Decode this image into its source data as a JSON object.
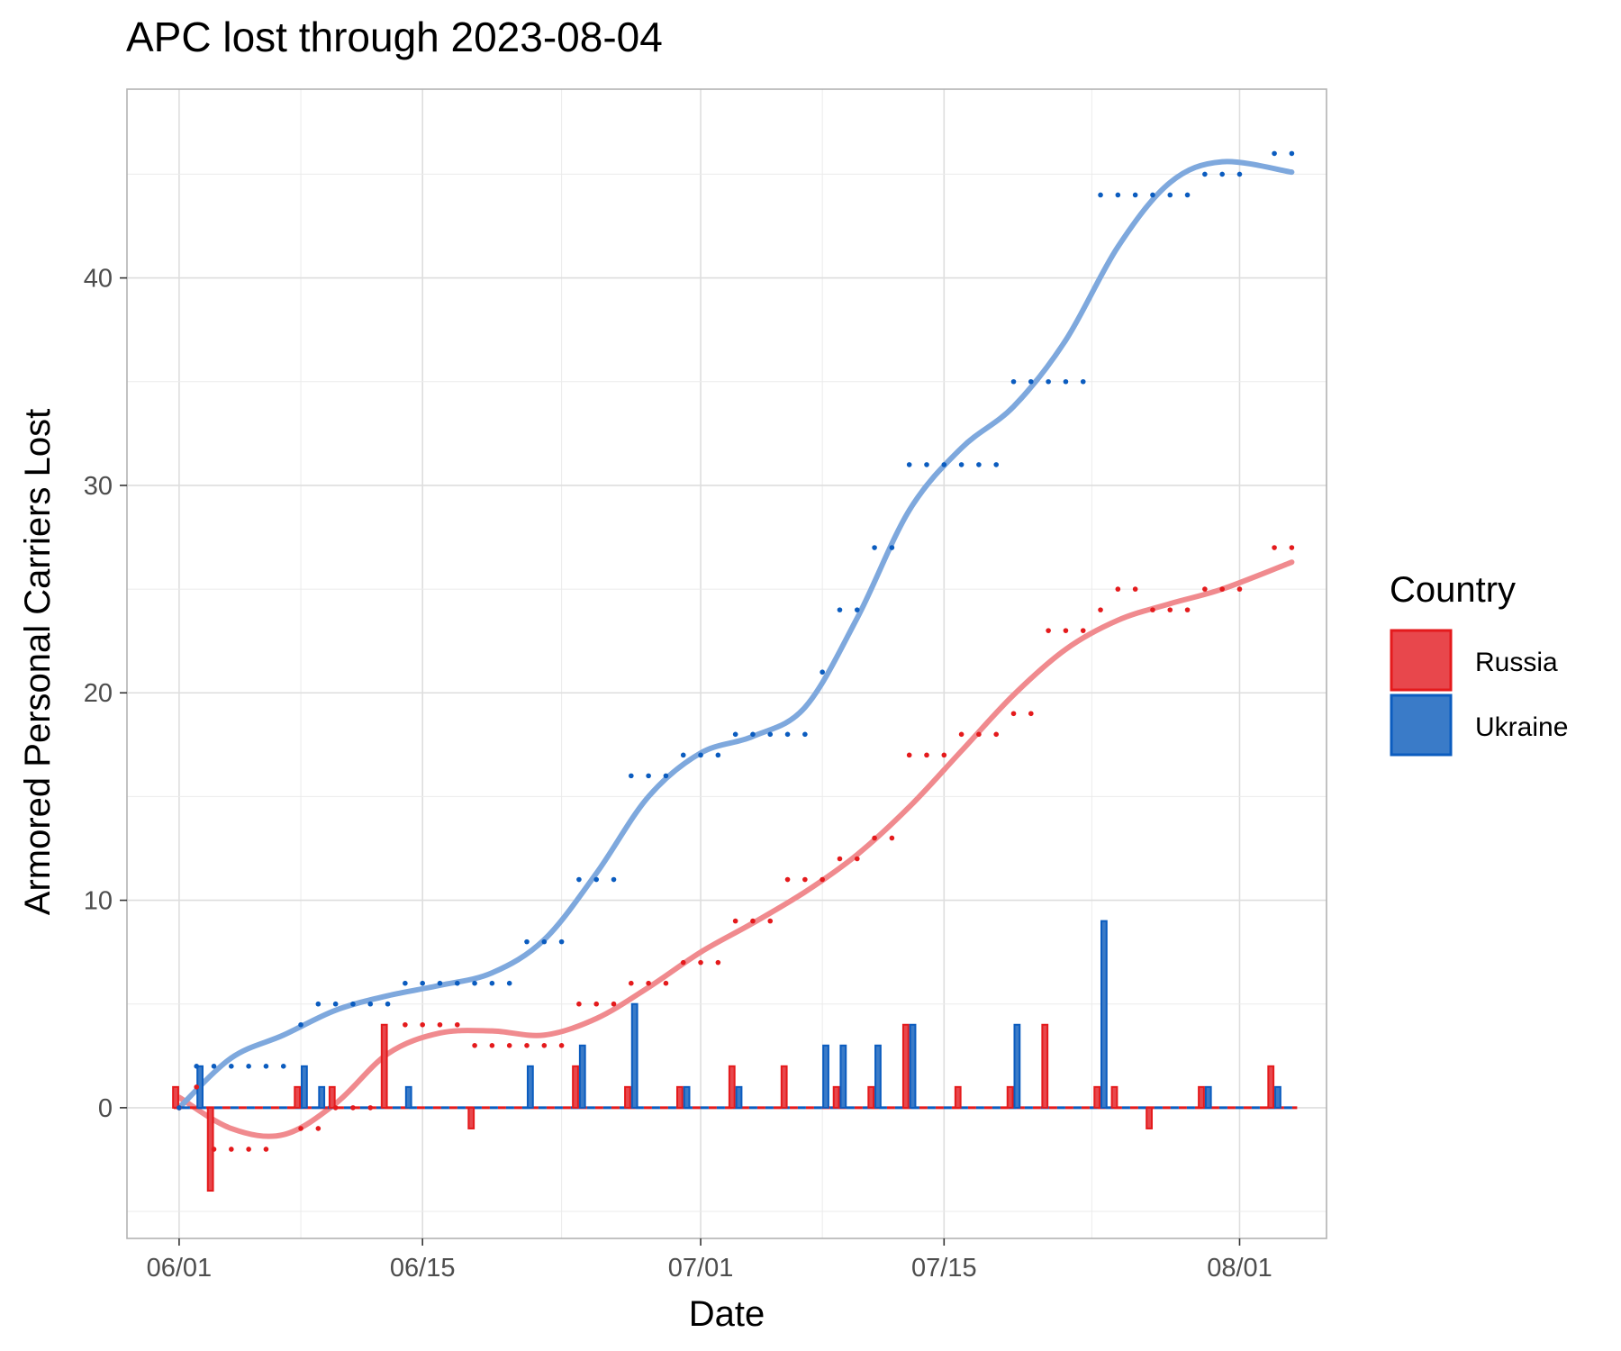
{
  "chart_data": {
    "type": "bar",
    "title": "APC lost through 2023-08-04",
    "xlabel": "Date",
    "ylabel": "Armored Personal Carriers Lost",
    "x_ticks": [
      "06/01",
      "06/15",
      "07/01",
      "07/15",
      "08/01"
    ],
    "y_ticks": [
      "0",
      "10",
      "20",
      "30",
      "40"
    ],
    "ylim": [
      -6.3,
      49.1
    ],
    "xlim": [
      "2023-05-29",
      "2023-08-06"
    ],
    "grid": true,
    "legend": {
      "title": "Country",
      "position": "right"
    },
    "colors": {
      "Russia": "#e8474c",
      "Ukraine": "#3a7bc8",
      "Russia_line": "#f08a8e",
      "Ukraine_line": "#7ea8dd",
      "Russia_dot": "#e41a1c",
      "Ukraine_dot": "#0b5cbf"
    },
    "series": [
      {
        "name": "Russia",
        "daily": [
          {
            "date": "2023-06-01",
            "value": 1
          },
          {
            "date": "2023-06-03",
            "value": -4
          },
          {
            "date": "2023-06-08",
            "value": 1
          },
          {
            "date": "2023-06-10",
            "value": 1
          },
          {
            "date": "2023-06-13",
            "value": 4
          },
          {
            "date": "2023-06-18",
            "value": -1
          },
          {
            "date": "2023-06-24",
            "value": 2
          },
          {
            "date": "2023-06-27",
            "value": 1
          },
          {
            "date": "2023-06-30",
            "value": 1
          },
          {
            "date": "2023-07-03",
            "value": 2
          },
          {
            "date": "2023-07-06",
            "value": 2
          },
          {
            "date": "2023-07-09",
            "value": 1
          },
          {
            "date": "2023-07-11",
            "value": 1
          },
          {
            "date": "2023-07-13",
            "value": 4
          },
          {
            "date": "2023-07-16",
            "value": 1
          },
          {
            "date": "2023-07-19",
            "value": 1
          },
          {
            "date": "2023-07-21",
            "value": 4
          },
          {
            "date": "2023-07-24",
            "value": 1
          },
          {
            "date": "2023-07-25",
            "value": 1
          },
          {
            "date": "2023-07-27",
            "value": -1
          },
          {
            "date": "2023-07-30",
            "value": 1
          },
          {
            "date": "2023-08-03",
            "value": 2
          }
        ],
        "cumulative": [
          {
            "date": "2023-06-01",
            "value": 0
          },
          {
            "date": "2023-06-02",
            "value": 1
          },
          {
            "date": "2023-06-03",
            "value": -2
          },
          {
            "date": "2023-06-04",
            "value": -2
          },
          {
            "date": "2023-06-05",
            "value": -2
          },
          {
            "date": "2023-06-06",
            "value": -2
          },
          {
            "date": "2023-06-08",
            "value": -1
          },
          {
            "date": "2023-06-09",
            "value": -1
          },
          {
            "date": "2023-06-10",
            "value": 0
          },
          {
            "date": "2023-06-11",
            "value": 0
          },
          {
            "date": "2023-06-12",
            "value": 0
          },
          {
            "date": "2023-06-14",
            "value": 4
          },
          {
            "date": "2023-06-15",
            "value": 4
          },
          {
            "date": "2023-06-16",
            "value": 4
          },
          {
            "date": "2023-06-17",
            "value": 4
          },
          {
            "date": "2023-06-18",
            "value": 3
          },
          {
            "date": "2023-06-19",
            "value": 3
          },
          {
            "date": "2023-06-20",
            "value": 3
          },
          {
            "date": "2023-06-21",
            "value": 3
          },
          {
            "date": "2023-06-22",
            "value": 3
          },
          {
            "date": "2023-06-23",
            "value": 3
          },
          {
            "date": "2023-06-24",
            "value": 5
          },
          {
            "date": "2023-06-25",
            "value": 5
          },
          {
            "date": "2023-06-26",
            "value": 5
          },
          {
            "date": "2023-06-27",
            "value": 6
          },
          {
            "date": "2023-06-28",
            "value": 6
          },
          {
            "date": "2023-06-29",
            "value": 6
          },
          {
            "date": "2023-06-30",
            "value": 7
          },
          {
            "date": "2023-07-01",
            "value": 7
          },
          {
            "date": "2023-07-02",
            "value": 7
          },
          {
            "date": "2023-07-03",
            "value": 9
          },
          {
            "date": "2023-07-04",
            "value": 9
          },
          {
            "date": "2023-07-05",
            "value": 9
          },
          {
            "date": "2023-07-06",
            "value": 11
          },
          {
            "date": "2023-07-07",
            "value": 11
          },
          {
            "date": "2023-07-08",
            "value": 11
          },
          {
            "date": "2023-07-09",
            "value": 12
          },
          {
            "date": "2023-07-10",
            "value": 12
          },
          {
            "date": "2023-07-11",
            "value": 13
          },
          {
            "date": "2023-07-12",
            "value": 13
          },
          {
            "date": "2023-07-13",
            "value": 17
          },
          {
            "date": "2023-07-14",
            "value": 17
          },
          {
            "date": "2023-07-15",
            "value": 17
          },
          {
            "date": "2023-07-16",
            "value": 18
          },
          {
            "date": "2023-07-17",
            "value": 18
          },
          {
            "date": "2023-07-18",
            "value": 18
          },
          {
            "date": "2023-07-19",
            "value": 19
          },
          {
            "date": "2023-07-20",
            "value": 19
          },
          {
            "date": "2023-07-21",
            "value": 23
          },
          {
            "date": "2023-07-22",
            "value": 23
          },
          {
            "date": "2023-07-23",
            "value": 23
          },
          {
            "date": "2023-07-24",
            "value": 24
          },
          {
            "date": "2023-07-25",
            "value": 25
          },
          {
            "date": "2023-07-26",
            "value": 25
          },
          {
            "date": "2023-07-27",
            "value": 24
          },
          {
            "date": "2023-07-28",
            "value": 24
          },
          {
            "date": "2023-07-29",
            "value": 24
          },
          {
            "date": "2023-07-30",
            "value": 25
          },
          {
            "date": "2023-07-31",
            "value": 25
          },
          {
            "date": "2023-08-01",
            "value": 25
          },
          {
            "date": "2023-08-03",
            "value": 27
          },
          {
            "date": "2023-08-04",
            "value": 27
          }
        ],
        "trend": [
          {
            "date": "2023-06-01",
            "value": 0.5
          },
          {
            "date": "2023-06-04",
            "value": -1
          },
          {
            "date": "2023-06-07",
            "value": -1.3
          },
          {
            "date": "2023-06-10",
            "value": 0.2
          },
          {
            "date": "2023-06-13",
            "value": 2.6
          },
          {
            "date": "2023-06-16",
            "value": 3.6
          },
          {
            "date": "2023-06-19",
            "value": 3.7
          },
          {
            "date": "2023-06-22",
            "value": 3.5
          },
          {
            "date": "2023-06-25",
            "value": 4.3
          },
          {
            "date": "2023-06-28",
            "value": 5.8
          },
          {
            "date": "2023-07-01",
            "value": 7.5
          },
          {
            "date": "2023-07-04",
            "value": 8.9
          },
          {
            "date": "2023-07-07",
            "value": 10.4
          },
          {
            "date": "2023-07-10",
            "value": 12.2
          },
          {
            "date": "2023-07-13",
            "value": 14.5
          },
          {
            "date": "2023-07-16",
            "value": 17.2
          },
          {
            "date": "2023-07-19",
            "value": 19.9
          },
          {
            "date": "2023-07-22",
            "value": 22.1
          },
          {
            "date": "2023-07-25",
            "value": 23.5
          },
          {
            "date": "2023-07-28",
            "value": 24.3
          },
          {
            "date": "2023-07-31",
            "value": 25.0
          },
          {
            "date": "2023-08-04",
            "value": 26.3
          }
        ]
      },
      {
        "name": "Ukraine",
        "daily": [
          {
            "date": "2023-06-02",
            "value": 2
          },
          {
            "date": "2023-06-08",
            "value": 2
          },
          {
            "date": "2023-06-09",
            "value": 1
          },
          {
            "date": "2023-06-14",
            "value": 1
          },
          {
            "date": "2023-06-21",
            "value": 2
          },
          {
            "date": "2023-06-24",
            "value": 3
          },
          {
            "date": "2023-06-27",
            "value": 5
          },
          {
            "date": "2023-06-30",
            "value": 1
          },
          {
            "date": "2023-07-03",
            "value": 1
          },
          {
            "date": "2023-07-08",
            "value": 3
          },
          {
            "date": "2023-07-09",
            "value": 3
          },
          {
            "date": "2023-07-11",
            "value": 3
          },
          {
            "date": "2023-07-13",
            "value": 4
          },
          {
            "date": "2023-07-19",
            "value": 4
          },
          {
            "date": "2023-07-24",
            "value": 9
          },
          {
            "date": "2023-07-30",
            "value": 1
          },
          {
            "date": "2023-08-03",
            "value": 1
          }
        ],
        "cumulative": [
          {
            "date": "2023-06-01",
            "value": 0
          },
          {
            "date": "2023-06-02",
            "value": 2
          },
          {
            "date": "2023-06-03",
            "value": 2
          },
          {
            "date": "2023-06-04",
            "value": 2
          },
          {
            "date": "2023-06-05",
            "value": 2
          },
          {
            "date": "2023-06-06",
            "value": 2
          },
          {
            "date": "2023-06-07",
            "value": 2
          },
          {
            "date": "2023-06-08",
            "value": 4
          },
          {
            "date": "2023-06-09",
            "value": 5
          },
          {
            "date": "2023-06-10",
            "value": 5
          },
          {
            "date": "2023-06-11",
            "value": 5
          },
          {
            "date": "2023-06-12",
            "value": 5
          },
          {
            "date": "2023-06-13",
            "value": 5
          },
          {
            "date": "2023-06-14",
            "value": 6
          },
          {
            "date": "2023-06-15",
            "value": 6
          },
          {
            "date": "2023-06-16",
            "value": 6
          },
          {
            "date": "2023-06-17",
            "value": 6
          },
          {
            "date": "2023-06-18",
            "value": 6
          },
          {
            "date": "2023-06-19",
            "value": 6
          },
          {
            "date": "2023-06-20",
            "value": 6
          },
          {
            "date": "2023-06-21",
            "value": 8
          },
          {
            "date": "2023-06-22",
            "value": 8
          },
          {
            "date": "2023-06-23",
            "value": 8
          },
          {
            "date": "2023-06-24",
            "value": 11
          },
          {
            "date": "2023-06-25",
            "value": 11
          },
          {
            "date": "2023-06-26",
            "value": 11
          },
          {
            "date": "2023-06-27",
            "value": 16
          },
          {
            "date": "2023-06-28",
            "value": 16
          },
          {
            "date": "2023-06-29",
            "value": 16
          },
          {
            "date": "2023-06-30",
            "value": 17
          },
          {
            "date": "2023-07-01",
            "value": 17
          },
          {
            "date": "2023-07-02",
            "value": 17
          },
          {
            "date": "2023-07-03",
            "value": 18
          },
          {
            "date": "2023-07-04",
            "value": 18
          },
          {
            "date": "2023-07-05",
            "value": 18
          },
          {
            "date": "2023-07-06",
            "value": 18
          },
          {
            "date": "2023-07-07",
            "value": 18
          },
          {
            "date": "2023-07-08",
            "value": 21
          },
          {
            "date": "2023-07-09",
            "value": 24
          },
          {
            "date": "2023-07-10",
            "value": 24
          },
          {
            "date": "2023-07-11",
            "value": 27
          },
          {
            "date": "2023-07-12",
            "value": 27
          },
          {
            "date": "2023-07-13",
            "value": 31
          },
          {
            "date": "2023-07-14",
            "value": 31
          },
          {
            "date": "2023-07-15",
            "value": 31
          },
          {
            "date": "2023-07-16",
            "value": 31
          },
          {
            "date": "2023-07-17",
            "value": 31
          },
          {
            "date": "2023-07-18",
            "value": 31
          },
          {
            "date": "2023-07-19",
            "value": 35
          },
          {
            "date": "2023-07-20",
            "value": 35
          },
          {
            "date": "2023-07-21",
            "value": 35
          },
          {
            "date": "2023-07-22",
            "value": 35
          },
          {
            "date": "2023-07-23",
            "value": 35
          },
          {
            "date": "2023-07-24",
            "value": 44
          },
          {
            "date": "2023-07-25",
            "value": 44
          },
          {
            "date": "2023-07-26",
            "value": 44
          },
          {
            "date": "2023-07-27",
            "value": 44
          },
          {
            "date": "2023-07-28",
            "value": 44
          },
          {
            "date": "2023-07-29",
            "value": 44
          },
          {
            "date": "2023-07-30",
            "value": 45
          },
          {
            "date": "2023-07-31",
            "value": 45
          },
          {
            "date": "2023-08-01",
            "value": 45
          },
          {
            "date": "2023-08-03",
            "value": 46
          },
          {
            "date": "2023-08-04",
            "value": 46
          }
        ],
        "trend": [
          {
            "date": "2023-06-01",
            "value": 0
          },
          {
            "date": "2023-06-04",
            "value": 2.4
          },
          {
            "date": "2023-06-07",
            "value": 3.5
          },
          {
            "date": "2023-06-10",
            "value": 4.7
          },
          {
            "date": "2023-06-13",
            "value": 5.4
          },
          {
            "date": "2023-06-16",
            "value": 5.9
          },
          {
            "date": "2023-06-19",
            "value": 6.5
          },
          {
            "date": "2023-06-22",
            "value": 8.1
          },
          {
            "date": "2023-06-25",
            "value": 11.3
          },
          {
            "date": "2023-06-28",
            "value": 15.0
          },
          {
            "date": "2023-07-01",
            "value": 17.1
          },
          {
            "date": "2023-07-04",
            "value": 17.9
          },
          {
            "date": "2023-07-07",
            "value": 19.3
          },
          {
            "date": "2023-07-10",
            "value": 23.6
          },
          {
            "date": "2023-07-13",
            "value": 28.8
          },
          {
            "date": "2023-07-16",
            "value": 31.8
          },
          {
            "date": "2023-07-19",
            "value": 33.8
          },
          {
            "date": "2023-07-22",
            "value": 37.0
          },
          {
            "date": "2023-07-25",
            "value": 41.5
          },
          {
            "date": "2023-07-28",
            "value": 44.6
          },
          {
            "date": "2023-07-31",
            "value": 45.6
          },
          {
            "date": "2023-08-04",
            "value": 45.1
          }
        ]
      }
    ]
  }
}
